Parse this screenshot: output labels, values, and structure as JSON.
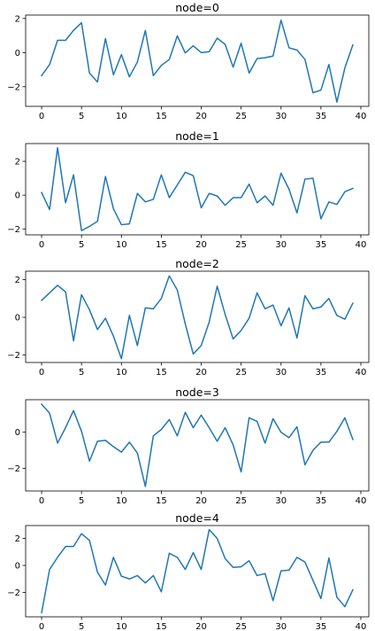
{
  "chart_data": [
    {
      "type": "line",
      "title": "node=0",
      "color": "#1f77b4",
      "x": [
        0,
        1,
        2,
        3,
        4,
        5,
        6,
        7,
        8,
        9,
        10,
        11,
        12,
        13,
        14,
        15,
        16,
        17,
        18,
        19,
        20,
        21,
        22,
        23,
        24,
        25,
        26,
        27,
        28,
        29,
        30,
        31,
        32,
        33,
        34,
        35,
        36,
        37,
        38,
        39
      ],
      "y": [
        -1.35,
        -0.7,
        0.72,
        0.72,
        1.3,
        1.75,
        -1.2,
        -1.72,
        0.82,
        -1.3,
        -0.12,
        -1.42,
        -0.55,
        1.3,
        -1.35,
        -0.75,
        -0.4,
        0.98,
        -0.02,
        0.4,
        0.0,
        0.05,
        0.85,
        0.48,
        -0.85,
        0.55,
        -1.2,
        -0.35,
        -0.3,
        -0.2,
        1.9,
        0.28,
        0.15,
        -0.4,
        -2.35,
        -2.2,
        -0.7,
        -2.9,
        -0.9,
        0.45
      ],
      "xlim": [
        -2,
        41
      ],
      "ylim": [
        -3.15,
        2.2
      ],
      "xticks": [
        0,
        5,
        10,
        15,
        20,
        25,
        30,
        35,
        40
      ],
      "yticks": [
        -2,
        0,
        2
      ]
    },
    {
      "type": "line",
      "title": "node=1",
      "color": "#1f77b4",
      "x": [
        0,
        1,
        2,
        3,
        4,
        5,
        6,
        7,
        8,
        9,
        10,
        11,
        12,
        13,
        14,
        15,
        16,
        17,
        18,
        19,
        20,
        21,
        22,
        23,
        24,
        25,
        26,
        27,
        28,
        29,
        30,
        31,
        32,
        33,
        34,
        35,
        36,
        37,
        38,
        39
      ],
      "y": [
        0.15,
        -0.85,
        2.8,
        -0.45,
        1.2,
        -2.1,
        -1.85,
        -1.55,
        1.1,
        -0.8,
        -1.75,
        -1.7,
        0.1,
        -0.4,
        -0.25,
        1.2,
        -0.15,
        0.6,
        1.35,
        1.15,
        -0.75,
        0.1,
        -0.05,
        -0.6,
        -0.15,
        -0.15,
        0.65,
        -0.45,
        -0.05,
        -0.6,
        1.3,
        0.35,
        -1.05,
        0.95,
        1.0,
        -1.4,
        -0.4,
        -0.55,
        0.2,
        0.4
      ],
      "xlim": [
        -2,
        41
      ],
      "ylim": [
        -2.35,
        3.05
      ],
      "xticks": [
        0,
        5,
        10,
        15,
        20,
        25,
        30,
        35,
        40
      ],
      "yticks": [
        -2,
        0,
        2
      ]
    },
    {
      "type": "line",
      "title": "node=2",
      "color": "#1f77b4",
      "x": [
        0,
        1,
        2,
        3,
        4,
        5,
        6,
        7,
        8,
        9,
        10,
        11,
        12,
        13,
        14,
        15,
        16,
        17,
        18,
        19,
        20,
        21,
        22,
        23,
        24,
        25,
        26,
        27,
        28,
        29,
        30,
        31,
        32,
        33,
        34,
        35,
        36,
        37,
        38,
        39
      ],
      "y": [
        0.9,
        1.3,
        1.7,
        1.35,
        -1.25,
        1.2,
        0.4,
        -0.65,
        -0.05,
        -1.0,
        -2.2,
        0.1,
        -1.5,
        0.5,
        0.45,
        1.0,
        2.2,
        1.45,
        -0.35,
        -1.95,
        -1.5,
        -0.25,
        1.65,
        0.15,
        -1.15,
        -0.7,
        -0.05,
        1.3,
        0.45,
        0.65,
        -0.45,
        0.5,
        -1.1,
        1.15,
        0.45,
        0.55,
        1.0,
        0.1,
        -0.1,
        0.75
      ],
      "xlim": [
        -2,
        41
      ],
      "ylim": [
        -2.4,
        2.45
      ],
      "xticks": [
        0,
        5,
        10,
        15,
        20,
        25,
        30,
        35,
        40
      ],
      "yticks": [
        -2,
        0,
        2
      ]
    },
    {
      "type": "line",
      "title": "node=3",
      "color": "#1f77b4",
      "x": [
        0,
        1,
        2,
        3,
        4,
        5,
        6,
        7,
        8,
        9,
        10,
        11,
        12,
        13,
        14,
        15,
        16,
        17,
        18,
        19,
        20,
        21,
        22,
        23,
        24,
        25,
        26,
        27,
        28,
        29,
        30,
        31,
        32,
        33,
        34,
        35,
        36,
        37,
        38,
        39
      ],
      "y": [
        1.55,
        1.05,
        -0.6,
        0.25,
        1.2,
        0.05,
        -1.6,
        -0.5,
        -0.45,
        -0.8,
        -1.1,
        -0.55,
        -1.15,
        -3.0,
        -0.2,
        0.15,
        0.7,
        -0.2,
        1.1,
        0.25,
        0.95,
        0.25,
        -0.5,
        0.25,
        -0.7,
        -2.2,
        0.8,
        0.6,
        -0.6,
        0.75,
        0.0,
        -0.3,
        0.3,
        -1.8,
        -1.0,
        -0.55,
        -0.55,
        0.05,
        0.8,
        -0.4
      ],
      "xlim": [
        -2,
        41
      ],
      "ylim": [
        -3.25,
        1.8
      ],
      "xticks": [
        0,
        5,
        10,
        15,
        20,
        25,
        30,
        35,
        40
      ],
      "yticks": [
        -2,
        0
      ]
    },
    {
      "type": "line",
      "title": "node=4",
      "color": "#1f77b4",
      "x": [
        0,
        1,
        2,
        3,
        4,
        5,
        6,
        7,
        8,
        9,
        10,
        11,
        12,
        13,
        14,
        15,
        16,
        17,
        18,
        19,
        20,
        21,
        22,
        23,
        24,
        25,
        26,
        27,
        28,
        29,
        30,
        31,
        32,
        33,
        34,
        35,
        36,
        37,
        38,
        39
      ],
      "y": [
        -3.5,
        -0.3,
        0.6,
        1.4,
        1.4,
        2.35,
        1.85,
        -0.5,
        -1.45,
        0.6,
        -0.8,
        -1.0,
        -0.75,
        -1.3,
        -0.75,
        -1.95,
        0.9,
        0.6,
        -0.3,
        0.95,
        -0.3,
        2.65,
        2.0,
        0.5,
        -0.15,
        -0.1,
        0.35,
        -0.75,
        -0.6,
        -2.6,
        -0.4,
        -0.35,
        0.6,
        0.25,
        -1.1,
        -2.45,
        0.55,
        -2.35,
        -3.05,
        -1.8
      ],
      "xlim": [
        -2,
        41
      ],
      "ylim": [
        -3.8,
        2.95
      ],
      "xticks": [
        0,
        5,
        10,
        15,
        20,
        25,
        30,
        35,
        40
      ],
      "yticks": [
        -2,
        0,
        2
      ]
    }
  ]
}
